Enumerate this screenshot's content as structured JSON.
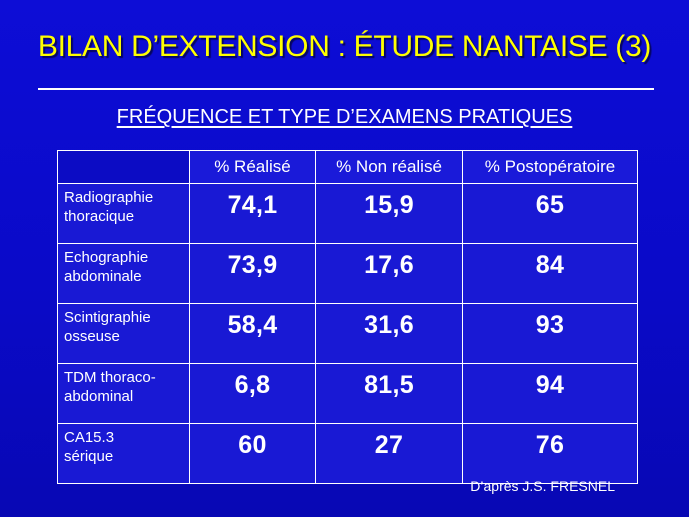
{
  "slide": {
    "title": "BILAN D’EXTENSION : ÉTUDE NANTAISE (3)",
    "subtitle": "FRÉQUENCE ET TYPE D’EXAMENS PRATIQUES",
    "source": "D’après J.S. FRESNEL",
    "colors": {
      "background": "#0a0ac8",
      "title": "#ffff00",
      "text": "#ffffff"
    }
  },
  "table": {
    "headers": [
      "",
      "% Réalisé",
      "% Non réalisé",
      "% Postopératoire"
    ],
    "rows": [
      {
        "label_line1": "Radiographie",
        "label_line2": "thoracique",
        "values": [
          "74,1",
          "15,9",
          "65"
        ]
      },
      {
        "label_line1": "Echographie",
        "label_line2": "abdominale",
        "values": [
          "73,9",
          "17,6",
          "84"
        ]
      },
      {
        "label_line1": "Scintigraphie",
        "label_line2": "osseuse",
        "values": [
          "58,4",
          "31,6",
          "93"
        ]
      },
      {
        "label_line1": "TDM thoraco-",
        "label_line2": "abdominal",
        "values": [
          "6,8",
          "81,5",
          "94"
        ]
      },
      {
        "label_line1": "CA15.3",
        "label_line2": "sérique",
        "values": [
          "60",
          "27",
          "76"
        ]
      }
    ]
  }
}
